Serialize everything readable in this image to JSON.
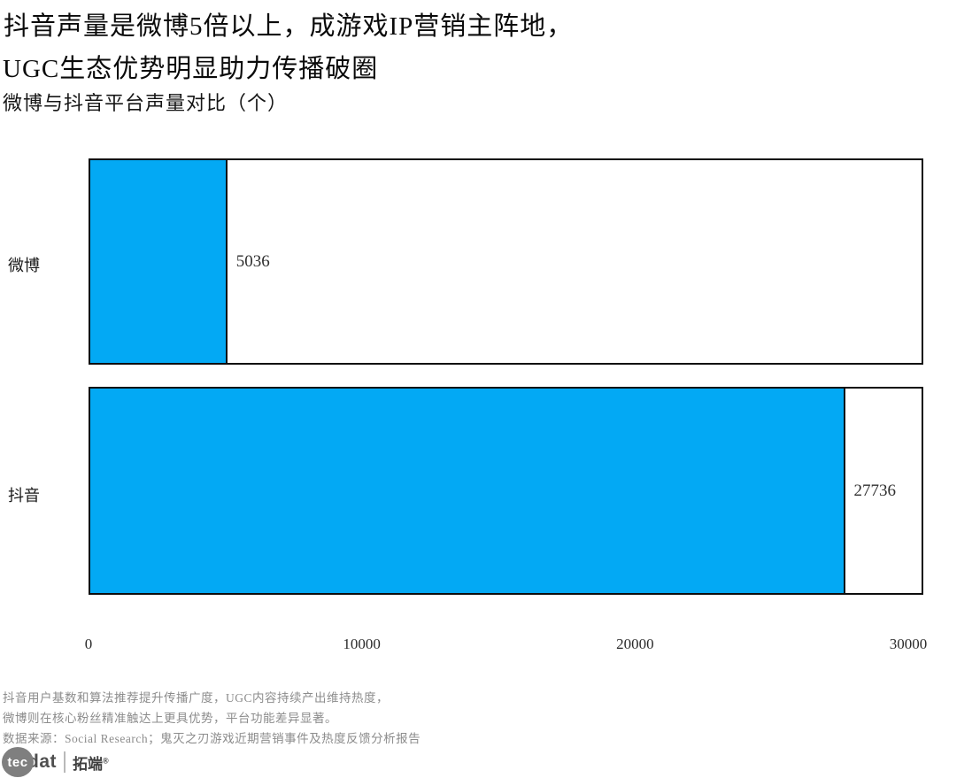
{
  "header": {
    "title_line1": "抖音声量是微博5倍以上，成游戏IP营销主阵地，",
    "title_line2": "UGC生态优势明显助力传播破圈",
    "subtitle": "微博与抖音平台声量对比（个）"
  },
  "chart_data": {
    "type": "bar",
    "orientation": "horizontal",
    "title": "微博与抖音平台声量对比（个）",
    "categories": [
      "微博",
      "抖音"
    ],
    "values": [
      5036,
      27736
    ],
    "value_labels": [
      "5036",
      "27736"
    ],
    "xlabel": "",
    "ylabel": "",
    "xlim": [
      0,
      30550
    ],
    "xticks": [
      0,
      10000,
      20000,
      30000
    ],
    "xtick_labels": [
      "0",
      "10000",
      "20000",
      "30000"
    ],
    "grid": false,
    "legend": false,
    "bar_color": "#03A9F4",
    "bar_border_color": "#0d0d0d"
  },
  "footer": {
    "note_line1": "抖音用户基数和算法推荐提升传播广度，UGC内容持续产出维持热度，",
    "note_line2": "微博则在核心粉丝精准触达上更具优势，平台功能差异显著。",
    "source": "数据来源：Social Research；鬼灭之刃游戏近期营销事件及热度反馈分析报告",
    "logo": {
      "tec": "tec",
      "dat": "dat",
      "brand": "拓端",
      "reg": "®"
    }
  }
}
